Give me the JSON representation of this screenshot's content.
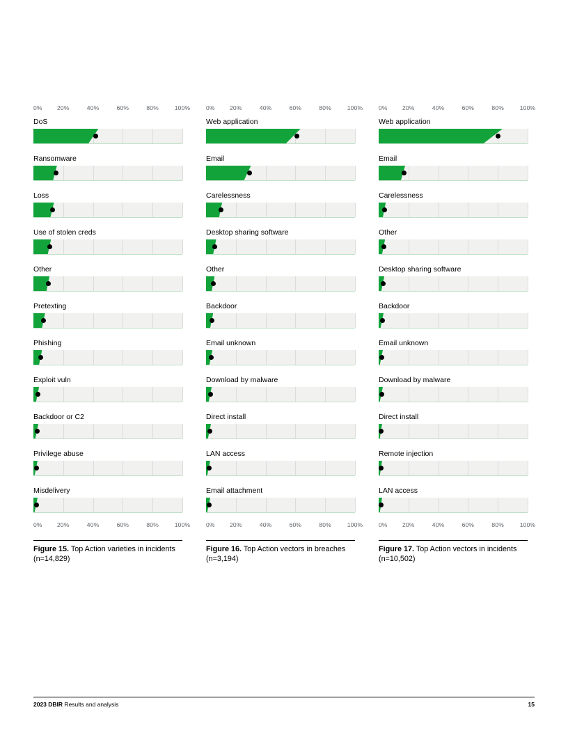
{
  "page": {
    "footer_left_bold": "2023 DBIR",
    "footer_left_rest": " Results and analysis",
    "footer_page_number": "15"
  },
  "colors": {
    "bar": "#12a43b",
    "dot": "#000000",
    "track": "#f1f1f0",
    "gridline": "#dcdcdc",
    "baseline": "#bfe0c6",
    "axis_text": "#5f6368"
  },
  "chart_data": [
    {
      "type": "bar",
      "orientation": "horizontal",
      "caption_bold": "Figure 15.",
      "caption_rest": " Top Action varieties in incidents (n=14,829)",
      "xlim": [
        0,
        100
      ],
      "x_ticks": [
        "0%",
        "20%",
        "40%",
        "60%",
        "80%",
        "100%"
      ],
      "grid": true,
      "categories": [
        "DoS",
        "Ransomware",
        "Loss",
        "Use of stolen creds",
        "Other",
        "Pretexting",
        "Phishing",
        "Exploit vuln",
        "Backdoor or C2",
        "Privilege abuse",
        "Misdelivery"
      ],
      "values": [
        42,
        15,
        13,
        11,
        10,
        7,
        5,
        3,
        2.5,
        2,
        2
      ]
    },
    {
      "type": "bar",
      "orientation": "horizontal",
      "caption_bold": "Figure 16.",
      "caption_rest": " Top Action vectors in breaches (n=3,194)",
      "xlim": [
        0,
        100
      ],
      "x_ticks": [
        "0%",
        "20%",
        "40%",
        "60%",
        "80%",
        "100%"
      ],
      "grid": true,
      "categories": [
        "Web application",
        "Email",
        "Carelessness",
        "Desktop sharing software",
        "Other",
        "Backdoor",
        "Email unknown",
        "Download by malware",
        "Direct install",
        "LAN access",
        "Email attachment"
      ],
      "values": [
        61,
        29,
        10,
        6,
        5,
        4,
        3.5,
        3,
        2.5,
        2,
        2
      ]
    },
    {
      "type": "bar",
      "orientation": "horizontal",
      "caption_bold": "Figure 17.",
      "caption_rest": " Top Action vectors in incidents (n=10,502)",
      "xlim": [
        0,
        100
      ],
      "x_ticks": [
        "0%",
        "20%",
        "40%",
        "60%",
        "80%",
        "100%"
      ],
      "grid": true,
      "categories": [
        "Web application",
        "Email",
        "Carelessness",
        "Other",
        "Desktop sharing software",
        "Backdoor",
        "Email unknown",
        "Download by malware",
        "Direct install",
        "Remote injection",
        "LAN access"
      ],
      "values": [
        80,
        17,
        4,
        3.5,
        3,
        2.5,
        2,
        2,
        1.5,
        1.5,
        1.5
      ]
    }
  ]
}
